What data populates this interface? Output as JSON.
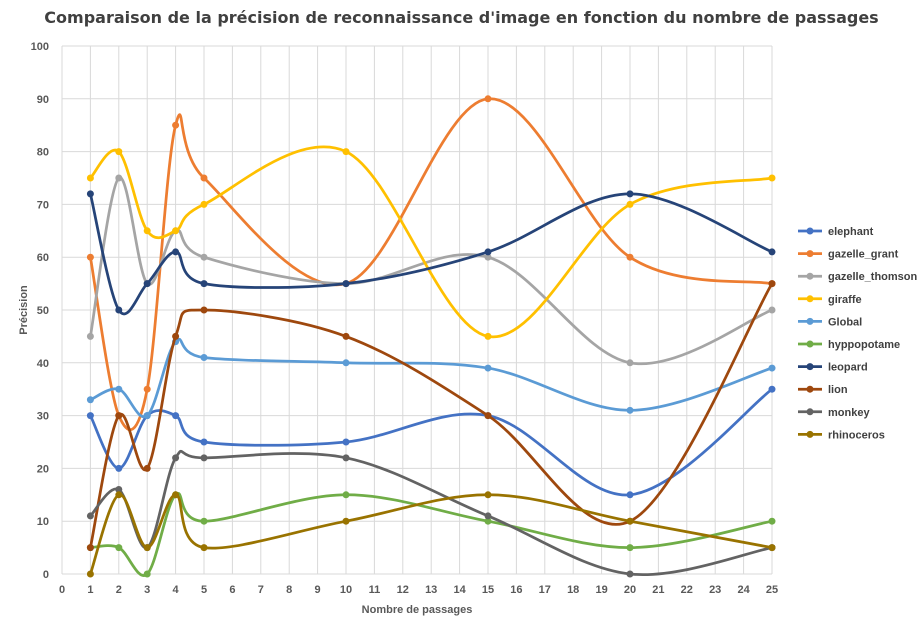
{
  "chart_data": {
    "type": "line",
    "title": "Comparaison de la précision de reconnaissance d'image en fonction du nombre de passages",
    "xlabel": "Nombre de passages",
    "ylabel": "Précision",
    "xlim": [
      0,
      25
    ],
    "ylim": [
      0,
      100
    ],
    "x_ticks": [
      0,
      1,
      2,
      3,
      4,
      5,
      6,
      7,
      8,
      9,
      10,
      11,
      12,
      13,
      14,
      15,
      16,
      17,
      18,
      19,
      20,
      21,
      22,
      23,
      24,
      25
    ],
    "y_ticks": [
      0,
      10,
      20,
      30,
      40,
      50,
      60,
      70,
      80,
      90,
      100
    ],
    "grid": true,
    "smooth": true,
    "legend_position": "right",
    "x": [
      1,
      2,
      3,
      4,
      5,
      10,
      15,
      20,
      25
    ],
    "series": [
      {
        "name": "elephant",
        "color": "#4472c4",
        "values": [
          30,
          20,
          30,
          30,
          25,
          25,
          30,
          15,
          35
        ]
      },
      {
        "name": "gazelle_grant",
        "color": "#ed7d31",
        "values": [
          60,
          30,
          35,
          85,
          75,
          55,
          90,
          60,
          55
        ]
      },
      {
        "name": "gazelle_thomson",
        "color": "#a5a5a5",
        "values": [
          45,
          75,
          55,
          65,
          60,
          55,
          60,
          40,
          50
        ]
      },
      {
        "name": "giraffe",
        "color": "#ffc000",
        "values": [
          75,
          80,
          65,
          65,
          70,
          80,
          45,
          70,
          75
        ]
      },
      {
        "name": "Global",
        "color": "#5b9bd5",
        "values": [
          33,
          35,
          30,
          44,
          41,
          40,
          39,
          31,
          39
        ]
      },
      {
        "name": "hyppopotame",
        "color": "#70ad47",
        "values": [
          5,
          5,
          0,
          15,
          10,
          15,
          10,
          5,
          10
        ]
      },
      {
        "name": "leopard",
        "color": "#264478",
        "values": [
          72,
          50,
          55,
          61,
          55,
          55,
          61,
          72,
          61
        ]
      },
      {
        "name": "lion",
        "color": "#9e480e",
        "values": [
          5,
          30,
          20,
          45,
          50,
          45,
          30,
          10,
          55
        ]
      },
      {
        "name": "monkey",
        "color": "#636363",
        "values": [
          11,
          16,
          5,
          22,
          22,
          22,
          11,
          0,
          5
        ]
      },
      {
        "name": "rhinoceros",
        "color": "#997300",
        "values": [
          0,
          15,
          5,
          15,
          5,
          10,
          15,
          10,
          5
        ]
      }
    ]
  }
}
